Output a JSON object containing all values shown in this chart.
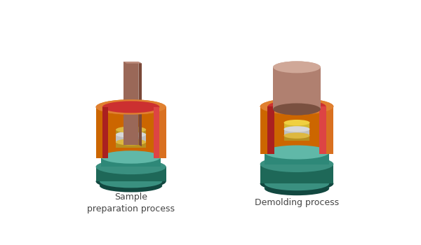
{
  "background_color": "#ffffff",
  "label1": "Sample\npreparation process",
  "label2": "Demolding process",
  "label_fontsize": 9,
  "colors": {
    "orange_outer": "#cc6600",
    "orange_top": "#e08030",
    "orange_side_light": "#d97020",
    "red_inner": "#aa2020",
    "red_face": "#cc3030",
    "red_light": "#dd4444",
    "teal_base_top": "#3a9080",
    "teal_base_body": "#1e6858",
    "teal_base_dark": "#124840",
    "teal_platform_top": "#60b8a8",
    "teal_platform_body": "#2e8878",
    "teal_inner": "#80c0b0",
    "gold_dark": "#b89020",
    "gold_mid": "#c8a030",
    "gold_light": "#ddb840",
    "silver_dark": "#aaaaaa",
    "silver_mid": "#c0c0c0",
    "silver_light": "#d8d8d8",
    "punch_front": "#9a6858",
    "punch_right": "#7a4838",
    "punch_top": "#c09080",
    "punch_left": "#8a5848",
    "cylinder_front": "#b08070",
    "cylinder_right": "#906050",
    "cylinder_top": "#d0a898",
    "cylinder_dark_rim": "#7a5040"
  }
}
